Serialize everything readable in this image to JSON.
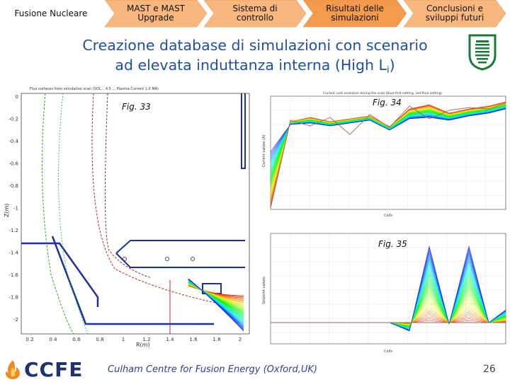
{
  "nav": {
    "items": [
      {
        "label_line1": "Fusione Nucleare",
        "label_line2": ""
      },
      {
        "label_line1": "MAST e MAST",
        "label_line2": "Upgrade"
      },
      {
        "label_line1": "Sistema di",
        "label_line2": "controllo"
      },
      {
        "label_line1": "Risultati delle",
        "label_line2": "simulazioni"
      },
      {
        "label_line1": "Conclusioni e",
        "label_line2": "sviluppi futuri"
      }
    ],
    "colors": {
      "inactive": "#f8b77f",
      "active": "#f39a4c",
      "first": "#ffffff",
      "stroke": "#e08a3c"
    }
  },
  "slide": {
    "title_line1": "Creazione database di simulazioni con scenario",
    "title_line2_main": "ad elevata induttanza interna (High L",
    "title_line2_sub": "i",
    "title_line2_end": ")",
    "title_color": "#1f4fa3"
  },
  "figures": {
    "fig33": {
      "label": "Fig. 33",
      "title": "Flux surfaces from simulation scan (SOL... 4.5 ... Plasma Current 1.0 MA)",
      "xlabel": "R(m)",
      "ylabel": "Z(m)",
      "yticks": [
        "0",
        "-0.2",
        "-0.4",
        "-0.6",
        "-0.8",
        "-1",
        "-1.2",
        "-1.4",
        "-1.6",
        "-1.8",
        "-2"
      ],
      "xticks": [
        "0.2",
        "0.4",
        "0.6",
        "0.8",
        "1",
        "1.2",
        "1.4",
        "1.6",
        "1.8",
        "2"
      ]
    },
    "fig34": {
      "label": "Fig. 34",
      "title": "Current coils evolution during the scan (blue-first setting, red-final setting)",
      "xlabel": "Coils",
      "ylabel": "Current values (A)"
    },
    "fig35": {
      "label": "Fig. 35",
      "title": "",
      "xlabel": "Coils",
      "ylabel": "Setpoint values"
    }
  },
  "footer": {
    "org_logo": "CCFE",
    "caption": "Culham Centre for Fusion Energy (Oxford,UK)",
    "page_number": "26"
  },
  "icons": {
    "university_logo": "shield-logo-icon",
    "ccfe_logo": "ccfe-flame-icon"
  }
}
